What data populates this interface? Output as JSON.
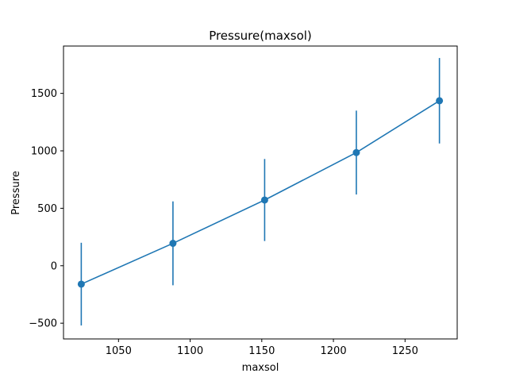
{
  "chart_data": {
    "type": "line",
    "title": "Pressure(maxsol)",
    "xlabel": "maxsol",
    "ylabel": "Pressure",
    "xlim": [
      1011.6,
      1286.4
    ],
    "ylim": [
      -637,
      1912
    ],
    "xticks": [
      1050,
      1100,
      1150,
      1200,
      1250
    ],
    "yticks": [
      -500,
      0,
      500,
      1000,
      1500
    ],
    "xtick_labels": [
      "1050",
      "1100",
      "1150",
      "1200",
      "1250"
    ],
    "ytick_labels": [
      "−500",
      "0",
      "500",
      "1000",
      "1500"
    ],
    "grid": false,
    "series": [
      {
        "color": "#1f77b4",
        "x": [
          1024,
          1088,
          1152,
          1216,
          1274
        ],
        "y": [
          -160,
          195,
          572,
          985,
          1436
        ],
        "yerr": [
          360,
          365,
          357,
          365,
          372
        ]
      }
    ]
  }
}
